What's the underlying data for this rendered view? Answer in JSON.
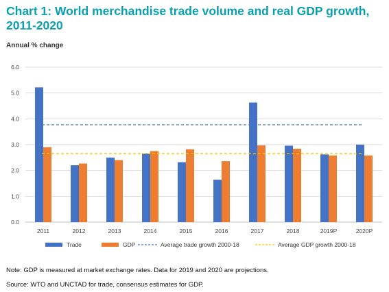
{
  "title": "Chart 1: World merchandise trade volume and real GDP growth, 2011-2020",
  "subtitle": "Annual % change",
  "note": "Note: GDP is measured at market exchange rates. Data for 2019 and 2020 are projections.",
  "source": "Source: WTO and UNCTAD for trade, consensus estimates for GDP.",
  "colors": {
    "trade": "#4472c4",
    "gdp": "#ed7d31",
    "avg_trade": "#4472c4",
    "avg_gdp": "#ffc000",
    "grid": "#d9d9d9",
    "title": "#0a9fb0"
  },
  "chart_data": {
    "type": "bar",
    "categories": [
      "2011",
      "2012",
      "2013",
      "2014",
      "2015",
      "2016",
      "2017",
      "2018",
      "2019P",
      "2020P"
    ],
    "series": [
      {
        "name": "Trade",
        "values": [
          5.22,
          2.2,
          2.5,
          2.66,
          2.32,
          1.64,
          4.63,
          2.96,
          2.62,
          3.0
        ]
      },
      {
        "name": "GDP",
        "values": [
          2.9,
          2.27,
          2.4,
          2.75,
          2.82,
          2.36,
          2.97,
          2.84,
          2.58,
          2.58
        ]
      }
    ],
    "reference_lines": [
      {
        "name": "Average trade growth 2000-18",
        "value": 3.77,
        "style": "dashed"
      },
      {
        "name": "Average GDP growth 2000-18",
        "value": 2.65,
        "style": "dashed"
      }
    ],
    "ylim": [
      0,
      6
    ],
    "yticks": [
      "0.0",
      "1.0",
      "2.0",
      "3.0",
      "4.0",
      "5.0",
      "6.0"
    ],
    "grid": true,
    "legend_position": "bottom"
  }
}
